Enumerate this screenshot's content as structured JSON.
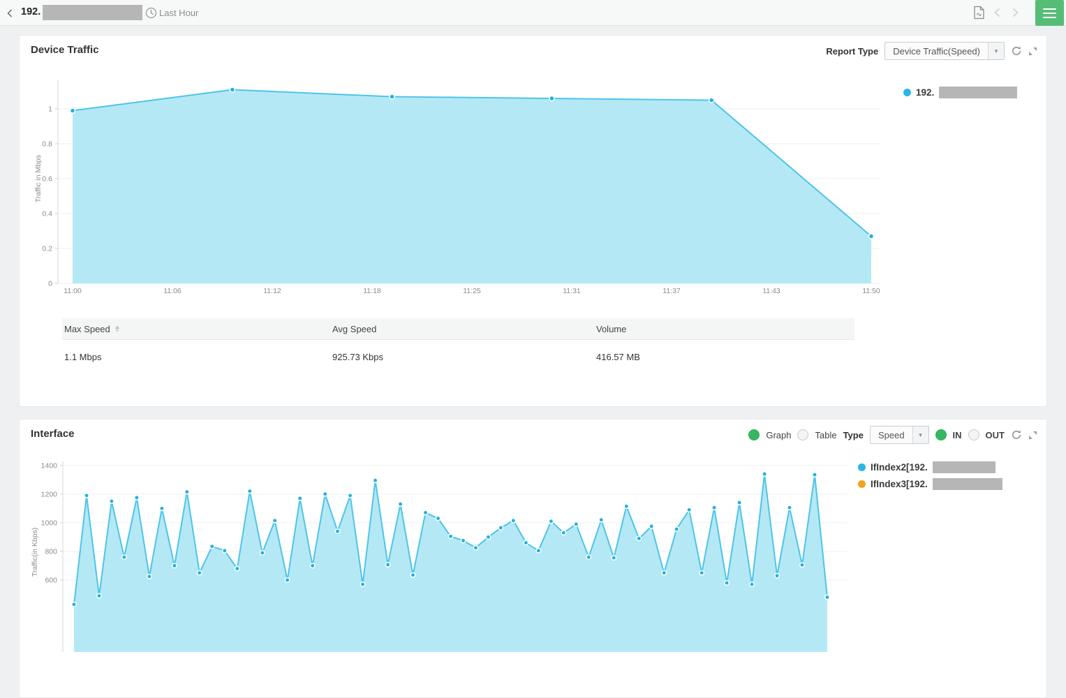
{
  "topbar": {
    "device_prefix": "192.",
    "device_redacted": true,
    "time_icon": "clock",
    "time_range_label": "Last Hour",
    "export_icon": "pdf-export",
    "nav_icons": [
      "back-chevron",
      "prev-chevron",
      "next-chevron",
      "hamburger-menu"
    ],
    "colors": {
      "menu_button": "#56bd77"
    }
  },
  "device_traffic_panel": {
    "title": "Device Traffic",
    "report_type_label": "Report Type",
    "report_type_value": "Device Traffic(Speed)",
    "action_icons": [
      "refresh",
      "expand"
    ],
    "legend": {
      "label_prefix": "192.",
      "redacted": true,
      "color": "#29b6e8"
    },
    "summary_table": {
      "headers": [
        "Max Speed",
        "Avg Speed",
        "Volume"
      ],
      "sort_column": "Max Speed",
      "rows": [
        [
          "1.1 Mbps",
          "925.73 Kbps",
          "416.57 MB"
        ]
      ]
    }
  },
  "interface_panel": {
    "title": "Interface",
    "view_options": [
      {
        "label": "Graph",
        "selected": true
      },
      {
        "label": "Table",
        "selected": false
      }
    ],
    "type_label": "Type",
    "type_value": "Speed",
    "direction_options": [
      {
        "label": "IN",
        "selected": true
      },
      {
        "label": "OUT",
        "selected": false
      }
    ],
    "action_icons": [
      "refresh",
      "expand"
    ],
    "legend": [
      {
        "label": "IfIndex2[192.",
        "redacted_suffix": true,
        "color": "#29b6e8"
      },
      {
        "label": "IfIndex3[192.",
        "redacted_suffix": true,
        "color": "#f5a11d"
      }
    ]
  },
  "chart_data": [
    {
      "type": "area",
      "title": "Device Traffic",
      "x": [
        "11:00",
        "11:10",
        "11:20",
        "11:30",
        "11:40",
        "11:50"
      ],
      "series": [
        {
          "name": "192.[redacted]",
          "values": [
            0.99,
            1.11,
            1.07,
            1.06,
            1.05,
            0.27
          ]
        }
      ],
      "xticks": [
        "11:00",
        "11:06",
        "11:12",
        "11:18",
        "11:25",
        "11:31",
        "11:37",
        "11:43",
        "11:50"
      ],
      "yticks": [
        0,
        0.2,
        0.4,
        0.6,
        0.8,
        1
      ],
      "ylim": [
        0,
        1.15
      ],
      "ylabel": "Traffic in Mbps",
      "grid": true,
      "legend_position": "right",
      "line_color": "#4cc5e8",
      "fill_color": "#b5e8f5",
      "dot_color": "#21b2dd"
    },
    {
      "type": "area",
      "title": "Interface (IN, Speed)",
      "series": [
        {
          "name": "IfIndex2[192.[redacted]",
          "values": [
            430,
            1190,
            490,
            1150,
            760,
            1175,
            625,
            1100,
            700,
            1215,
            650,
            835,
            805,
            680,
            1220,
            790,
            1015,
            600,
            1170,
            700,
            1200,
            940,
            1190,
            570,
            1295,
            707,
            1130,
            635,
            1070,
            1030,
            905,
            875,
            825,
            900,
            965,
            1015,
            860,
            805,
            1010,
            930,
            990,
            760,
            1020,
            755,
            1115,
            890,
            975,
            650,
            955,
            1090,
            650,
            1105,
            580,
            1140,
            570,
            1340,
            630,
            1105,
            705,
            1335,
            480
          ]
        }
      ],
      "yticks": [
        600,
        800,
        1000,
        1200,
        1400
      ],
      "ylim_visible": [
        430,
        1400
      ],
      "ylabel": "Traffic(in Kbps)",
      "xaxis_visible": false,
      "clipped_bottom": true,
      "grid": true,
      "legend_position": "right",
      "line_color": "#4cc5e8",
      "fill_color": "#b5e8f5",
      "dot_color": "#21b2dd"
    }
  ]
}
